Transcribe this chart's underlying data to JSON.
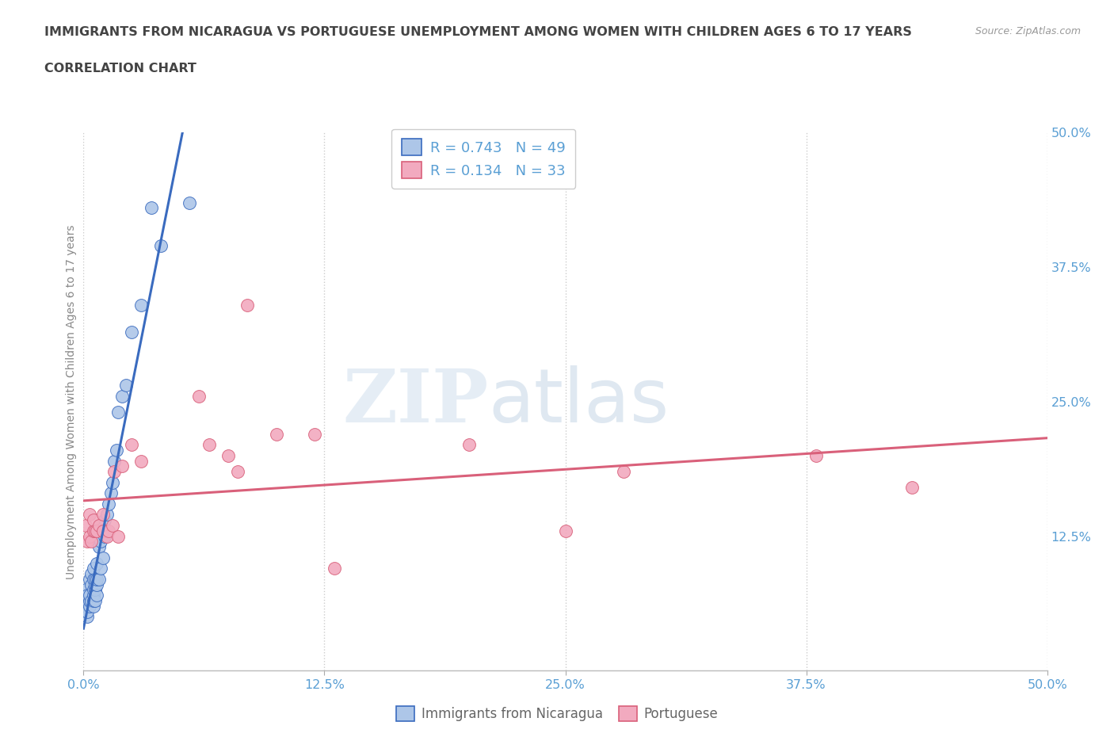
{
  "title_line1": "IMMIGRANTS FROM NICARAGUA VS PORTUGUESE UNEMPLOYMENT AMONG WOMEN WITH CHILDREN AGES 6 TO 17 YEARS",
  "title_line2": "CORRELATION CHART",
  "source_text": "Source: ZipAtlas.com",
  "ylabel": "Unemployment Among Women with Children Ages 6 to 17 years",
  "xlim": [
    0.0,
    0.5
  ],
  "ylim": [
    0.0,
    0.5
  ],
  "xtick_labels": [
    "0.0%",
    "12.5%",
    "25.0%",
    "37.5%",
    "50.0%"
  ],
  "xtick_vals": [
    0.0,
    0.125,
    0.25,
    0.375,
    0.5
  ],
  "ytick_labels": [
    "12.5%",
    "25.0%",
    "37.5%",
    "50.0%"
  ],
  "ytick_vals": [
    0.125,
    0.25,
    0.375,
    0.5
  ],
  "blue_R": "0.743",
  "blue_N": "49",
  "pink_R": "0.134",
  "pink_N": "33",
  "blue_color": "#adc6e8",
  "pink_color": "#f2aabf",
  "blue_line_color": "#3a6bbf",
  "pink_line_color": "#d9607a",
  "watermark_zip": "ZIP",
  "watermark_atlas": "atlas",
  "blue_scatter_x": [
    0.0,
    0.001,
    0.001,
    0.002,
    0.002,
    0.002,
    0.003,
    0.003,
    0.003,
    0.003,
    0.004,
    0.004,
    0.004,
    0.005,
    0.005,
    0.005,
    0.005,
    0.005,
    0.005,
    0.006,
    0.006,
    0.006,
    0.006,
    0.007,
    0.007,
    0.007,
    0.007,
    0.008,
    0.008,
    0.009,
    0.009,
    0.01,
    0.01,
    0.011,
    0.011,
    0.012,
    0.013,
    0.014,
    0.015,
    0.016,
    0.017,
    0.018,
    0.02,
    0.022,
    0.025,
    0.03,
    0.035,
    0.04,
    0.055
  ],
  "blue_scatter_y": [
    0.065,
    0.06,
    0.075,
    0.05,
    0.055,
    0.07,
    0.06,
    0.065,
    0.07,
    0.085,
    0.065,
    0.08,
    0.09,
    0.06,
    0.065,
    0.07,
    0.075,
    0.085,
    0.095,
    0.065,
    0.075,
    0.08,
    0.085,
    0.07,
    0.08,
    0.085,
    0.1,
    0.085,
    0.115,
    0.095,
    0.12,
    0.105,
    0.13,
    0.125,
    0.14,
    0.145,
    0.155,
    0.165,
    0.175,
    0.195,
    0.205,
    0.24,
    0.255,
    0.265,
    0.315,
    0.34,
    0.43,
    0.395,
    0.435
  ],
  "pink_scatter_x": [
    0.001,
    0.002,
    0.003,
    0.003,
    0.004,
    0.005,
    0.005,
    0.006,
    0.007,
    0.008,
    0.01,
    0.01,
    0.012,
    0.013,
    0.015,
    0.016,
    0.018,
    0.02,
    0.025,
    0.03,
    0.06,
    0.065,
    0.075,
    0.08,
    0.085,
    0.1,
    0.12,
    0.13,
    0.2,
    0.25,
    0.28,
    0.38,
    0.43
  ],
  "pink_scatter_y": [
    0.135,
    0.12,
    0.125,
    0.145,
    0.12,
    0.13,
    0.14,
    0.13,
    0.13,
    0.135,
    0.13,
    0.145,
    0.125,
    0.13,
    0.135,
    0.185,
    0.125,
    0.19,
    0.21,
    0.195,
    0.255,
    0.21,
    0.2,
    0.185,
    0.34,
    0.22,
    0.22,
    0.095,
    0.21,
    0.13,
    0.185,
    0.2,
    0.17
  ],
  "blue_line_x1": 0.0,
  "blue_line_x2": 0.055,
  "blue_line_dashed_x1": 0.055,
  "blue_line_dashed_x2": 0.08,
  "background_color": "#ffffff",
  "grid_color": "#cccccc",
  "title_color": "#444444",
  "axis_label_color": "#888888",
  "tick_label_color": "#5a9fd4",
  "source_color": "#999999"
}
